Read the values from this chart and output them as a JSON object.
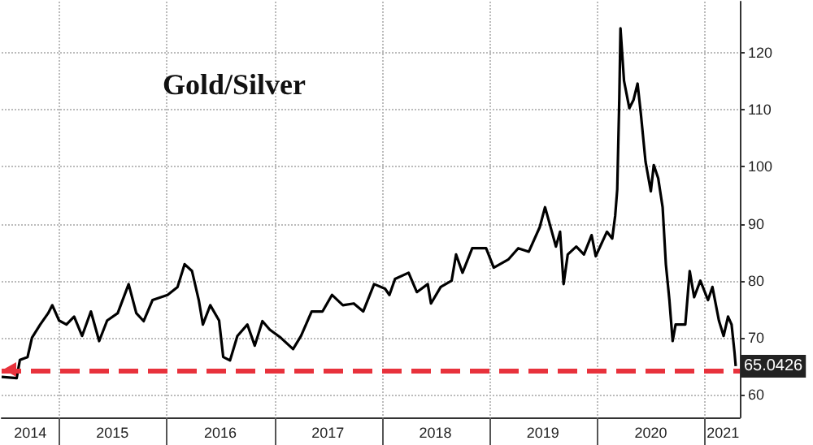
{
  "chart_data": {
    "type": "line",
    "title": "Gold/Silver",
    "x": [
      "2014-06-20",
      "2014-08-10",
      "2014-08-21",
      "2014-09-16",
      "2014-10-01",
      "2014-10-29",
      "2014-11-25",
      "2014-12-09",
      "2015-01-01",
      "2015-01-26",
      "2015-02-21",
      "2015-03-20",
      "2015-04-19",
      "2015-05-17",
      "2015-06-13",
      "2015-07-19",
      "2015-08-25",
      "2015-09-20",
      "2015-10-15",
      "2015-11-14",
      "2016-01-04",
      "2016-02-07",
      "2016-03-02",
      "2016-03-27",
      "2016-04-19",
      "2016-05-03",
      "2016-05-28",
      "2016-06-27",
      "2016-07-11",
      "2016-08-03",
      "2016-08-28",
      "2016-10-01",
      "2016-10-26",
      "2016-11-21",
      "2016-12-16",
      "2017-01-22",
      "2017-03-05",
      "2017-04-01",
      "2017-05-07",
      "2017-06-13",
      "2017-07-15",
      "2017-08-21",
      "2017-09-27",
      "2017-10-29",
      "2017-12-05",
      "2018-01-11",
      "2018-01-26",
      "2018-02-14",
      "2018-04-01",
      "2018-04-29",
      "2018-06-05",
      "2018-06-16",
      "2018-07-19",
      "2018-08-25",
      "2018-09-09",
      "2018-10-01",
      "2018-11-03",
      "2018-12-20",
      "2019-01-15",
      "2019-03-05",
      "2019-04-08",
      "2019-05-14",
      "2019-06-20",
      "2019-07-08",
      "2019-07-22",
      "2019-08-14",
      "2019-08-28",
      "2019-09-09",
      "2019-09-23",
      "2019-10-22",
      "2019-11-17",
      "2019-12-13",
      "2019-12-27",
      "2020-02-03",
      "2020-02-21",
      "2020-03-02",
      "2020-03-09",
      "2020-03-16",
      "2020-03-20",
      "2020-04-01",
      "2020-04-19",
      "2020-05-03",
      "2020-05-17",
      "2020-05-28",
      "2020-06-13",
      "2020-07-01",
      "2020-07-11",
      "2020-07-26",
      "2020-08-10",
      "2020-08-21",
      "2020-09-02",
      "2020-09-13",
      "2020-09-23",
      "2020-10-26",
      "2020-11-10",
      "2020-11-25",
      "2020-12-16",
      "2021-01-11",
      "2021-01-26",
      "2021-02-17",
      "2021-03-05",
      "2021-03-20",
      "2021-04-01",
      "2021-04-11",
      "2021-04-15"
    ],
    "series": [
      {
        "color": "#000000",
        "values": [
          63.1,
          62.9,
          66.1,
          66.6,
          70,
          72.3,
          74.3,
          75.7,
          73,
          72.3,
          73.7,
          70.3,
          74.6,
          69.4,
          73,
          74.3,
          79.4,
          74.3,
          72.9,
          76.6,
          77.5,
          78.9,
          82.9,
          81.7,
          76.6,
          72.3,
          75.7,
          73,
          66.6,
          66,
          70.3,
          72.3,
          68.6,
          72.9,
          71.4,
          70,
          68,
          70.3,
          74.6,
          74.6,
          77.5,
          75.7,
          76,
          74.6,
          79.4,
          78.6,
          77.5,
          80.3,
          81.4,
          78,
          79.4,
          76,
          78.9,
          80,
          84.6,
          81.4,
          85.7,
          85.7,
          82.3,
          83.7,
          85.7,
          85.1,
          89.4,
          92.9,
          90.3,
          86,
          88.6,
          79.4,
          84.6,
          86,
          84.6,
          88,
          84.3,
          88.6,
          87.4,
          91.4,
          96,
          112,
          124.3,
          115.1,
          110.3,
          111.7,
          114.6,
          109.4,
          100.9,
          95.7,
          100.3,
          98,
          92.9,
          82.9,
          76.6,
          69.4,
          72.3,
          72.3,
          81.7,
          77.1,
          80,
          76.6,
          78.9,
          73,
          70.3,
          73.7,
          72.3,
          67.4,
          65.0
        ]
      }
    ],
    "xlim": [
      "2014-06-20",
      "2021-04-29"
    ],
    "xticks": [
      {
        "value": "2014-09-25",
        "label": "2014"
      },
      {
        "value": "2015-01-01",
        "label": null
      },
      {
        "value": "2015-07-01",
        "label": "2015"
      },
      {
        "value": "2016-01-01",
        "label": null
      },
      {
        "value": "2016-07-01",
        "label": "2016"
      },
      {
        "value": "2017-01-01",
        "label": null
      },
      {
        "value": "2017-07-01",
        "label": "2017"
      },
      {
        "value": "2018-01-01",
        "label": null
      },
      {
        "value": "2018-07-01",
        "label": "2018"
      },
      {
        "value": "2019-01-01",
        "label": null
      },
      {
        "value": "2019-07-01",
        "label": "2019"
      },
      {
        "value": "2020-01-01",
        "label": null
      },
      {
        "value": "2020-07-01",
        "label": "2020"
      },
      {
        "value": "2021-01-01",
        "label": null
      },
      {
        "value": "2021-03-03",
        "label": "2021"
      }
    ],
    "ylim": [
      56,
      129
    ],
    "yticks": [
      60,
      70,
      80,
      90,
      100,
      110,
      120
    ],
    "ref_lines": [
      {
        "axis": "y",
        "value": 64.3,
        "color": "#e8323c",
        "line_style": "dashed"
      }
    ],
    "annotations": [
      {
        "text": "65.0426",
        "x": "2021-04-15",
        "y": 65.0
      }
    ],
    "grid": true,
    "marker": "none",
    "line_style": "solid"
  }
}
